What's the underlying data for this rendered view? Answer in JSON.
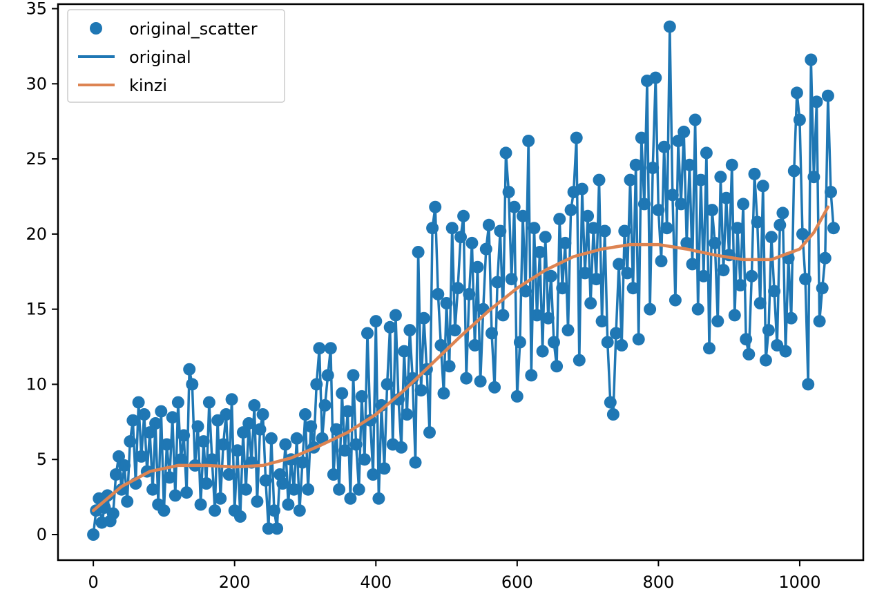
{
  "chart_data": {
    "type": "line",
    "title": "",
    "xlabel": "",
    "ylabel": "",
    "xlim": [
      -50,
      1090
    ],
    "ylim": [
      -1.7,
      35.3
    ],
    "xticks": [
      0,
      200,
      400,
      600,
      800,
      1000
    ],
    "yticks": [
      0,
      5,
      10,
      15,
      20,
      25,
      30,
      35
    ],
    "grid": false,
    "legend_position": "top-left",
    "legend": [
      {
        "label": "original_scatter",
        "marker": "circle",
        "color": "#1f77b4"
      },
      {
        "label": "original",
        "marker": "line",
        "color": "#1f77b4"
      },
      {
        "label": "kinzi",
        "marker": "line",
        "color": "#dd8452"
      }
    ],
    "series": [
      {
        "name": "original",
        "style": "line+markers",
        "color": "#1f77b4",
        "note_shape": "noisy series of ~520 points, x from 0 to 1040, approximated",
        "points": [
          [
            0,
            0.0
          ],
          [
            4,
            1.6
          ],
          [
            8,
            2.4
          ],
          [
            12,
            0.8
          ],
          [
            16,
            1.8
          ],
          [
            20,
            2.6
          ],
          [
            24,
            0.9
          ],
          [
            28,
            1.4
          ],
          [
            32,
            4.0
          ],
          [
            36,
            5.2
          ],
          [
            40,
            3.0
          ],
          [
            44,
            4.6
          ],
          [
            48,
            2.2
          ],
          [
            52,
            6.2
          ],
          [
            56,
            7.6
          ],
          [
            60,
            3.4
          ],
          [
            64,
            8.8
          ],
          [
            68,
            5.2
          ],
          [
            72,
            8.0
          ],
          [
            76,
            4.2
          ],
          [
            80,
            6.8
          ],
          [
            84,
            3.0
          ],
          [
            88,
            7.4
          ],
          [
            92,
            2.0
          ],
          [
            96,
            8.2
          ],
          [
            100,
            1.6
          ],
          [
            104,
            6.0
          ],
          [
            108,
            3.8
          ],
          [
            112,
            7.8
          ],
          [
            116,
            2.6
          ],
          [
            120,
            8.8
          ],
          [
            124,
            5.0
          ],
          [
            128,
            6.6
          ],
          [
            132,
            2.8
          ],
          [
            136,
            11.0
          ],
          [
            140,
            10.0
          ],
          [
            144,
            4.6
          ],
          [
            148,
            7.2
          ],
          [
            152,
            2.0
          ],
          [
            156,
            6.2
          ],
          [
            160,
            3.4
          ],
          [
            164,
            8.8
          ],
          [
            168,
            5.0
          ],
          [
            172,
            1.6
          ],
          [
            176,
            7.6
          ],
          [
            180,
            2.4
          ],
          [
            184,
            6.0
          ],
          [
            188,
            8.0
          ],
          [
            192,
            4.0
          ],
          [
            196,
            9.0
          ],
          [
            200,
            1.6
          ],
          [
            204,
            5.6
          ],
          [
            208,
            1.2
          ],
          [
            212,
            6.8
          ],
          [
            216,
            3.0
          ],
          [
            220,
            7.4
          ],
          [
            224,
            4.8
          ],
          [
            228,
            8.6
          ],
          [
            232,
            2.2
          ],
          [
            236,
            7.0
          ],
          [
            240,
            8.0
          ],
          [
            244,
            3.6
          ],
          [
            248,
            0.4
          ],
          [
            252,
            6.4
          ],
          [
            256,
            1.6
          ],
          [
            260,
            0.4
          ],
          [
            264,
            4.0
          ],
          [
            268,
            3.4
          ],
          [
            272,
            6.0
          ],
          [
            276,
            2.0
          ],
          [
            280,
            5.0
          ],
          [
            284,
            3.0
          ],
          [
            288,
            6.4
          ],
          [
            292,
            1.6
          ],
          [
            296,
            4.8
          ],
          [
            300,
            8.0
          ],
          [
            304,
            3.0
          ],
          [
            308,
            7.2
          ],
          [
            312,
            5.8
          ],
          [
            316,
            10.0
          ],
          [
            320,
            12.4
          ],
          [
            324,
            6.4
          ],
          [
            328,
            8.6
          ],
          [
            332,
            10.6
          ],
          [
            336,
            12.4
          ],
          [
            340,
            4.0
          ],
          [
            344,
            7.0
          ],
          [
            348,
            3.0
          ],
          [
            352,
            9.4
          ],
          [
            356,
            5.6
          ],
          [
            360,
            8.2
          ],
          [
            364,
            2.4
          ],
          [
            368,
            10.6
          ],
          [
            372,
            6.0
          ],
          [
            376,
            3.0
          ],
          [
            380,
            9.2
          ],
          [
            384,
            5.0
          ],
          [
            388,
            13.4
          ],
          [
            392,
            7.6
          ],
          [
            396,
            4.0
          ],
          [
            400,
            14.2
          ],
          [
            404,
            2.4
          ],
          [
            408,
            8.6
          ],
          [
            412,
            4.4
          ],
          [
            416,
            10.0
          ],
          [
            420,
            13.8
          ],
          [
            424,
            6.0
          ],
          [
            428,
            14.6
          ],
          [
            432,
            9.0
          ],
          [
            436,
            5.8
          ],
          [
            440,
            12.2
          ],
          [
            444,
            8.0
          ],
          [
            448,
            13.6
          ],
          [
            452,
            10.4
          ],
          [
            456,
            4.8
          ],
          [
            460,
            18.8
          ],
          [
            464,
            9.6
          ],
          [
            468,
            14.4
          ],
          [
            472,
            11.0
          ],
          [
            476,
            6.8
          ],
          [
            480,
            20.4
          ],
          [
            484,
            21.8
          ],
          [
            488,
            16.0
          ],
          [
            492,
            12.6
          ],
          [
            496,
            9.4
          ],
          [
            500,
            15.4
          ],
          [
            504,
            11.2
          ],
          [
            508,
            20.4
          ],
          [
            512,
            13.6
          ],
          [
            516,
            16.4
          ],
          [
            520,
            19.8
          ],
          [
            524,
            21.2
          ],
          [
            528,
            10.4
          ],
          [
            532,
            16.0
          ],
          [
            536,
            19.4
          ],
          [
            540,
            12.6
          ],
          [
            544,
            17.8
          ],
          [
            548,
            10.2
          ],
          [
            552,
            15.0
          ],
          [
            556,
            19.0
          ],
          [
            560,
            20.6
          ],
          [
            564,
            13.4
          ],
          [
            568,
            9.8
          ],
          [
            572,
            16.8
          ],
          [
            576,
            20.2
          ],
          [
            580,
            14.6
          ],
          [
            584,
            25.4
          ],
          [
            588,
            22.8
          ],
          [
            592,
            17.0
          ],
          [
            596,
            21.8
          ],
          [
            600,
            9.2
          ],
          [
            604,
            12.8
          ],
          [
            608,
            21.2
          ],
          [
            612,
            16.2
          ],
          [
            616,
            26.2
          ],
          [
            620,
            10.6
          ],
          [
            624,
            20.4
          ],
          [
            628,
            14.6
          ],
          [
            632,
            18.8
          ],
          [
            636,
            12.2
          ],
          [
            640,
            19.8
          ],
          [
            644,
            14.4
          ],
          [
            648,
            17.2
          ],
          [
            652,
            12.8
          ],
          [
            656,
            11.2
          ],
          [
            660,
            21.0
          ],
          [
            664,
            16.4
          ],
          [
            668,
            19.4
          ],
          [
            672,
            13.6
          ],
          [
            676,
            21.6
          ],
          [
            680,
            22.8
          ],
          [
            684,
            26.4
          ],
          [
            688,
            11.6
          ],
          [
            692,
            23.0
          ],
          [
            696,
            17.4
          ],
          [
            700,
            21.2
          ],
          [
            704,
            15.4
          ],
          [
            708,
            20.4
          ],
          [
            712,
            17.0
          ],
          [
            716,
            23.6
          ],
          [
            720,
            14.2
          ],
          [
            724,
            20.2
          ],
          [
            728,
            12.8
          ],
          [
            732,
            8.8
          ],
          [
            736,
            8.0
          ],
          [
            740,
            13.4
          ],
          [
            744,
            18.0
          ],
          [
            748,
            12.6
          ],
          [
            752,
            20.2
          ],
          [
            756,
            17.4
          ],
          [
            760,
            23.6
          ],
          [
            764,
            16.4
          ],
          [
            768,
            24.6
          ],
          [
            772,
            13.0
          ],
          [
            776,
            26.4
          ],
          [
            780,
            22.0
          ],
          [
            784,
            30.2
          ],
          [
            788,
            15.0
          ],
          [
            792,
            24.4
          ],
          [
            796,
            30.4
          ],
          [
            800,
            21.6
          ],
          [
            804,
            18.2
          ],
          [
            808,
            25.8
          ],
          [
            812,
            20.4
          ],
          [
            816,
            33.8
          ],
          [
            820,
            22.6
          ],
          [
            824,
            15.6
          ],
          [
            828,
            26.2
          ],
          [
            832,
            22.0
          ],
          [
            836,
            26.8
          ],
          [
            840,
            19.4
          ],
          [
            844,
            24.6
          ],
          [
            848,
            18.0
          ],
          [
            852,
            27.6
          ],
          [
            856,
            15.0
          ],
          [
            860,
            23.6
          ],
          [
            864,
            17.2
          ],
          [
            868,
            25.4
          ],
          [
            872,
            12.4
          ],
          [
            876,
            21.6
          ],
          [
            880,
            19.4
          ],
          [
            884,
            14.2
          ],
          [
            888,
            23.8
          ],
          [
            892,
            17.6
          ],
          [
            896,
            22.4
          ],
          [
            900,
            18.6
          ],
          [
            904,
            24.6
          ],
          [
            908,
            14.6
          ],
          [
            912,
            20.4
          ],
          [
            916,
            16.6
          ],
          [
            920,
            22.0
          ],
          [
            924,
            13.0
          ],
          [
            928,
            12.0
          ],
          [
            932,
            17.2
          ],
          [
            936,
            24.0
          ],
          [
            940,
            20.8
          ],
          [
            944,
            15.4
          ],
          [
            948,
            23.2
          ],
          [
            952,
            11.6
          ],
          [
            956,
            13.6
          ],
          [
            960,
            19.8
          ],
          [
            964,
            16.2
          ],
          [
            968,
            12.6
          ],
          [
            972,
            20.6
          ],
          [
            976,
            21.4
          ],
          [
            980,
            12.2
          ],
          [
            984,
            18.4
          ],
          [
            988,
            14.4
          ],
          [
            992,
            24.2
          ],
          [
            996,
            29.4
          ],
          [
            1000,
            27.6
          ],
          [
            1004,
            20.0
          ],
          [
            1008,
            17.0
          ],
          [
            1012,
            10.0
          ],
          [
            1016,
            31.6
          ],
          [
            1020,
            23.8
          ],
          [
            1024,
            28.8
          ],
          [
            1028,
            14.2
          ],
          [
            1032,
            16.4
          ],
          [
            1036,
            18.4
          ],
          [
            1040,
            29.2
          ],
          [
            1044,
            22.8
          ],
          [
            1048,
            20.4
          ]
        ]
      },
      {
        "name": "kinzi",
        "style": "line",
        "color": "#dd8452",
        "points": [
          [
            0,
            1.6
          ],
          [
            40,
            3.2
          ],
          [
            80,
            4.2
          ],
          [
            120,
            4.6
          ],
          [
            160,
            4.6
          ],
          [
            200,
            4.5
          ],
          [
            240,
            4.6
          ],
          [
            280,
            5.1
          ],
          [
            320,
            5.9
          ],
          [
            360,
            6.8
          ],
          [
            400,
            8.0
          ],
          [
            440,
            9.6
          ],
          [
            480,
            11.4
          ],
          [
            520,
            13.2
          ],
          [
            560,
            14.9
          ],
          [
            600,
            16.4
          ],
          [
            640,
            17.6
          ],
          [
            680,
            18.5
          ],
          [
            720,
            19.0
          ],
          [
            760,
            19.3
          ],
          [
            800,
            19.3
          ],
          [
            840,
            19.0
          ],
          [
            880,
            18.6
          ],
          [
            920,
            18.3
          ],
          [
            960,
            18.3
          ],
          [
            1000,
            19.0
          ],
          [
            1020,
            20.1
          ],
          [
            1040,
            21.8
          ]
        ]
      }
    ]
  }
}
